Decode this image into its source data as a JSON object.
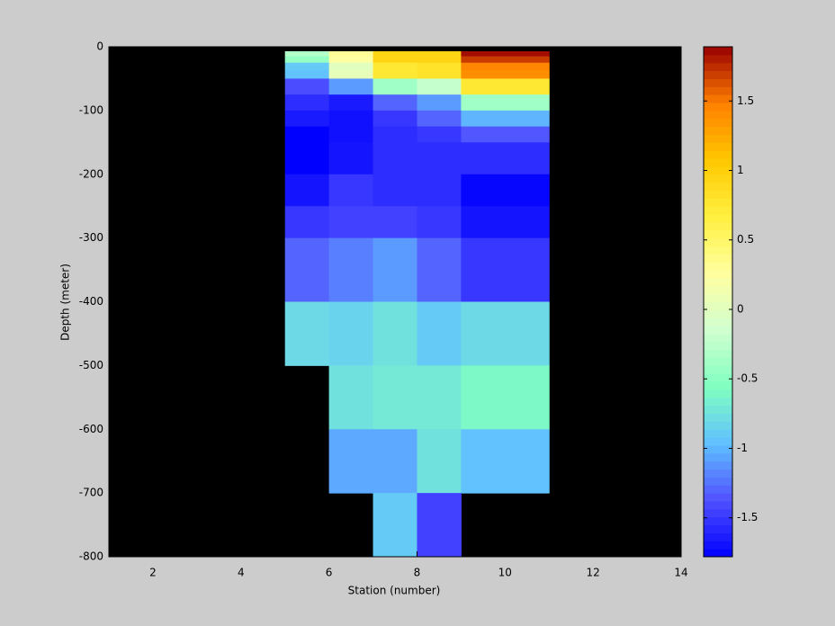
{
  "chart_data": {
    "type": "heatmap",
    "x_label": "Station (number)",
    "y_label": "Depth (meter)",
    "x_edges": [
      5,
      6,
      7,
      8,
      9,
      11
    ],
    "y_edges": [
      0,
      -7,
      -15,
      -25,
      -37,
      -50,
      -75,
      -100,
      -125,
      -150,
      -200,
      -250,
      -300,
      -400,
      -500,
      -600,
      -700,
      -800
    ],
    "values": [
      [
        null,
        null,
        null,
        null,
        null
      ],
      [
        -0.3,
        0.3,
        0.95,
        0.95,
        1.85
      ],
      [
        -0.45,
        0.25,
        0.95,
        0.95,
        1.7
      ],
      [
        -0.9,
        0.0,
        0.75,
        0.8,
        1.45
      ],
      [
        -0.95,
        0.05,
        0.75,
        0.8,
        1.4
      ],
      [
        -1.4,
        -1.1,
        -0.4,
        -0.2,
        0.75
      ],
      [
        -1.55,
        -1.65,
        -1.3,
        -1.1,
        -0.4
      ],
      [
        -1.65,
        -1.7,
        -1.5,
        -1.3,
        -1.0
      ],
      [
        -1.78,
        -1.7,
        -1.55,
        -1.5,
        -1.35
      ],
      [
        -1.78,
        -1.68,
        -1.55,
        -1.55,
        -1.55
      ],
      [
        -1.68,
        -1.5,
        -1.55,
        -1.55,
        -1.75
      ],
      [
        -1.5,
        -1.45,
        -1.45,
        -1.5,
        -1.68
      ],
      [
        -1.3,
        -1.2,
        -1.1,
        -1.3,
        -1.5
      ],
      [
        -0.8,
        -0.85,
        -0.75,
        -0.9,
        -0.8
      ],
      [
        null,
        -0.75,
        -0.7,
        -0.7,
        -0.6
      ],
      [
        null,
        -1.05,
        -1.05,
        -0.75,
        -0.95
      ],
      [
        null,
        null,
        -0.9,
        -1.45,
        null
      ]
    ],
    "xlim": [
      1,
      14
    ],
    "xticks": [
      2,
      4,
      6,
      8,
      10,
      12,
      14
    ],
    "ylim": [
      -800,
      0
    ],
    "yticks": [
      0,
      -100,
      -200,
      -300,
      -400,
      -500,
      -600,
      -700,
      -800
    ],
    "clim": [
      -1.78,
      1.89
    ],
    "cticks": [
      -1.5,
      -1,
      -0.5,
      0,
      0.5,
      1,
      1.5
    ],
    "colormap": [
      "#0000ff",
      "#5050ff",
      "#60c0ff",
      "#80ffc0",
      "#d0ffd0",
      "#ffffa0",
      "#fff040",
      "#ffc800",
      "#ff8000",
      "#990000"
    ],
    "background": "#000000"
  }
}
